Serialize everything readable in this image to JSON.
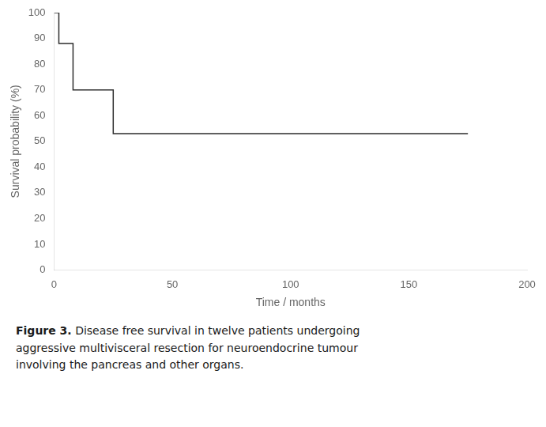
{
  "chart_data": {
    "type": "line",
    "x": [
      0,
      2,
      2,
      8,
      8,
      25,
      25,
      40,
      40,
      175
    ],
    "series": [
      {
        "color": "#2d2d2d",
        "values": [
          100,
          100,
          88,
          88,
          70,
          70,
          53,
          53,
          53,
          53
        ]
      }
    ],
    "xlabel": "Time / months",
    "ylabel": "Survival probability (%)",
    "xlim": [
      0,
      200
    ],
    "ylim": [
      0,
      100
    ],
    "xticks": [
      0,
      50,
      100,
      150,
      200
    ],
    "yticks": [
      0,
      10,
      20,
      30,
      40,
      50,
      60,
      70,
      80,
      90,
      100
    ],
    "grid": false,
    "caption_bold": "Figure 3.",
    "caption": " Disease free survival in twelve patients undergoing\naggressive multivisceral resection for neuroendocrine tumour\ninvolving the pancreas and other organs."
  }
}
